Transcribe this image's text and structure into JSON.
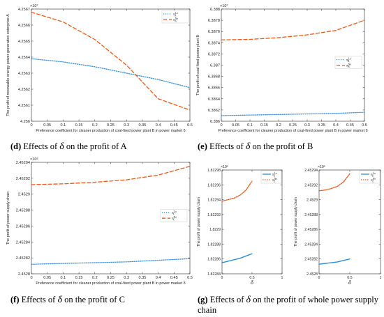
{
  "figure": {
    "captions": [
      {
        "label": "(d)",
        "text_before": "Effects of",
        "symbol": "δ",
        "text_after": "on the profit of A"
      },
      {
        "label": "(e)",
        "text_before": "Effects of",
        "symbol": "δ",
        "text_after": "on the profit of B"
      },
      {
        "label": "(f)",
        "text_before": "Effects of",
        "symbol": "δ",
        "text_after": "on the profit of C"
      },
      {
        "label": "(g)",
        "text_before": "Effects of",
        "symbol": "δ",
        "text_after": "on the profit of whole power supply chain"
      }
    ]
  },
  "chart_data": [
    {
      "id": "d",
      "type": "line",
      "exponent": "×10⁷",
      "xlabel": "Preference coefficient for cleaner production of coal-fired power plant B in power market δ",
      "ylabel": "The profit of renewable energy power generation enterprise A",
      "xlim": [
        0,
        0.5
      ],
      "ylim": [
        4.256,
        4.2567
      ],
      "xticks": [
        0,
        0.05,
        0.1,
        0.15,
        0.2,
        0.25,
        0.3,
        0.35,
        0.4,
        0.45,
        0.5
      ],
      "yticks": [
        4.256,
        4.2561,
        4.2562,
        4.2563,
        4.2564,
        4.2565,
        4.2566,
        4.2567
      ],
      "xtick_labels": [
        "0",
        "0.05",
        "0.1",
        "0.15",
        "0.2",
        "0.25",
        "0.3",
        "0.35",
        "0.4",
        "0.45",
        "0.5"
      ],
      "ytick_labels": [
        "4.256",
        "4.2561",
        "4.2562",
        "4.2563",
        "4.2564",
        "4.2565",
        "4.2566",
        "4.2567"
      ],
      "legend": "top-right",
      "grid": false,
      "series": [
        {
          "name": "π_A^Lo",
          "color": "#2e8bd8",
          "dash": "1.2,1.8",
          "x": [
            0,
            0.1,
            0.2,
            0.3,
            0.4,
            0.5
          ],
          "values": [
            4.25639,
            4.25637,
            4.25634,
            4.2563,
            4.25626,
            4.25621
          ]
        },
        {
          "name": "π_A^Ne",
          "color": "#e8591a",
          "dash": "5,3",
          "x": [
            0,
            0.1,
            0.2,
            0.3,
            0.4,
            0.5
          ],
          "values": [
            4.25668,
            4.25662,
            4.25651,
            4.25635,
            4.25614,
            4.25607
          ]
        }
      ]
    },
    {
      "id": "e",
      "type": "line",
      "exponent": "×10⁷",
      "xlabel": "Preference coefficient for cleaner production of coal-fired power plant B in power market δ",
      "ylabel": "The profit of coal-fired power plant B",
      "xlim": [
        0,
        0.5
      ],
      "ylim": [
        6.386,
        6.388
      ],
      "xticks": [
        0,
        0.05,
        0.1,
        0.15,
        0.2,
        0.25,
        0.3,
        0.35,
        0.4,
        0.45,
        0.5
      ],
      "yticks": [
        6.386,
        6.3862,
        6.3864,
        6.3866,
        6.3868,
        6.387,
        6.3872,
        6.3874,
        6.3876,
        6.3878,
        6.388
      ],
      "xtick_labels": [
        "0",
        "0.05",
        "0.1",
        "0.15",
        "0.2",
        "0.25",
        "0.3",
        "0.35",
        "0.4",
        "0.45",
        "0.5"
      ],
      "ytick_labels": [
        "6.386",
        "6.3862",
        "6.3864",
        "6.3866",
        "6.3868",
        "6.387",
        "6.3872",
        "6.3874",
        "6.3876",
        "6.3878",
        "6.388"
      ],
      "legend": "middle-right",
      "grid": false,
      "series": [
        {
          "name": "π_B^Lo",
          "color": "#2e8bd8",
          "dash": "1.2,1.8",
          "x": [
            0,
            0.1,
            0.2,
            0.3,
            0.4,
            0.5
          ],
          "values": [
            6.3861,
            6.38611,
            6.38612,
            6.38613,
            6.38614,
            6.38616
          ]
        },
        {
          "name": "π_B^Ne",
          "color": "#e8591a",
          "dash": "5,3",
          "x": [
            0,
            0.1,
            0.2,
            0.3,
            0.4,
            0.5
          ],
          "values": [
            6.38745,
            6.38746,
            6.38749,
            6.38754,
            6.38762,
            6.3878
          ]
        }
      ]
    },
    {
      "id": "f",
      "type": "line",
      "exponent": "×10⁶",
      "xlabel": "Preference coefficient for cleaner production of coal-fired power plant B in power market δ",
      "ylabel": "The profit of power supply chain",
      "xlim": [
        0,
        0.5
      ],
      "ylim": [
        2.4528,
        2.45294
      ],
      "xticks": [
        0,
        0.05,
        0.1,
        0.15,
        0.2,
        0.25,
        0.3,
        0.35,
        0.4,
        0.45,
        0.5
      ],
      "yticks": [
        2.4528,
        2.45282,
        2.45284,
        2.45286,
        2.45288,
        2.4529,
        2.45292,
        2.45294
      ],
      "xtick_labels": [
        "0",
        "0.05",
        "0.1",
        "0.15",
        "0.2",
        "0.25",
        "0.3",
        "0.35",
        "0.4",
        "0.45",
        "0.5"
      ],
      "ytick_labels": [
        "2.4528",
        "2.45282",
        "2.45284",
        "2.45286",
        "2.45288",
        "2.4529",
        "2.45292",
        "2.45294"
      ],
      "legend": "middle-right",
      "grid": false,
      "series": [
        {
          "name": "π_C^Lo",
          "color": "#2e8bd8",
          "dash": "1.2,1.8",
          "x": [
            0,
            0.1,
            0.2,
            0.3,
            0.4,
            0.5
          ],
          "values": [
            2.452812,
            2.452813,
            2.452814,
            2.452815,
            2.452817,
            2.452819
          ]
        },
        {
          "name": "π_C^Ne",
          "color": "#e8591a",
          "dash": "5,3",
          "x": [
            0,
            0.1,
            0.2,
            0.3,
            0.4,
            0.5
          ],
          "values": [
            2.452912,
            2.452913,
            2.452915,
            2.452918,
            2.452924,
            2.452935
          ]
        }
      ]
    },
    {
      "id": "g1",
      "type": "line",
      "exponent": "×10⁶",
      "xlabel": "δ",
      "ylabel": "The profit of power supply chain",
      "xlim": [
        0,
        1
      ],
      "ylim": [
        1.82284,
        1.82298
      ],
      "xticks": [
        0,
        0.5,
        1
      ],
      "yticks": [
        1.82284,
        1.82286,
        1.82288,
        1.8229,
        1.82292,
        1.82294,
        1.82296,
        1.82298
      ],
      "xtick_labels": [
        "0",
        "0.5",
        "1"
      ],
      "ytick_labels": [
        "1.82284",
        "1.82286",
        "1.82288",
        "1.8229",
        "1.82292",
        "1.82294",
        "1.82296",
        "1.82298"
      ],
      "legend": "top-right",
      "grid": false,
      "series": [
        {
          "name": "π_Z^Lo",
          "color": "#2e8bd8",
          "dash": "",
          "x": [
            0,
            0.1,
            0.2,
            0.3,
            0.4,
            0.5
          ],
          "values": [
            1.822855,
            1.822857,
            1.822859,
            1.822861,
            1.822864,
            1.822867
          ]
        },
        {
          "name": "π_Z^Ne",
          "color": "#e8591a",
          "dash": "1.5,1.5",
          "x": [
            0,
            0.1,
            0.2,
            0.3,
            0.4,
            0.5
          ],
          "values": [
            1.822938,
            1.82294,
            1.822942,
            1.822946,
            1.822953,
            1.822965
          ]
        }
      ]
    },
    {
      "id": "g2",
      "type": "line",
      "exponent": "×10⁶",
      "xlabel": "δ",
      "ylabel": "The profit of power supply chain",
      "xlim": [
        0,
        1
      ],
      "ylim": [
        2.4528,
        2.45294
      ],
      "xticks": [
        0,
        0.5,
        1
      ],
      "yticks": [
        2.4528,
        2.45282,
        2.45284,
        2.45286,
        2.45288,
        2.4529,
        2.45292,
        2.45294
      ],
      "xtick_labels": [
        "0",
        "0.5",
        "1"
      ],
      "ytick_labels": [
        "2.4528",
        "2.45282",
        "2.45284",
        "2.45286",
        "2.45288",
        "2.4529",
        "2.45292",
        "2.45294"
      ],
      "legend": "top-right",
      "grid": false,
      "series": [
        {
          "name": "π_Z^Lo",
          "color": "#2e8bd8",
          "dash": "",
          "x": [
            0,
            0.1,
            0.2,
            0.3,
            0.4,
            0.5
          ],
          "values": [
            2.452813,
            2.452814,
            2.452815,
            2.452816,
            2.452818,
            2.45282
          ]
        },
        {
          "name": "π_Z^Ne",
          "color": "#e8591a",
          "dash": "1.5,1.5",
          "x": [
            0,
            0.1,
            0.2,
            0.3,
            0.4,
            0.5
          ],
          "values": [
            2.452912,
            2.452913,
            2.452915,
            2.452918,
            2.452924,
            2.452935
          ]
        }
      ]
    }
  ]
}
